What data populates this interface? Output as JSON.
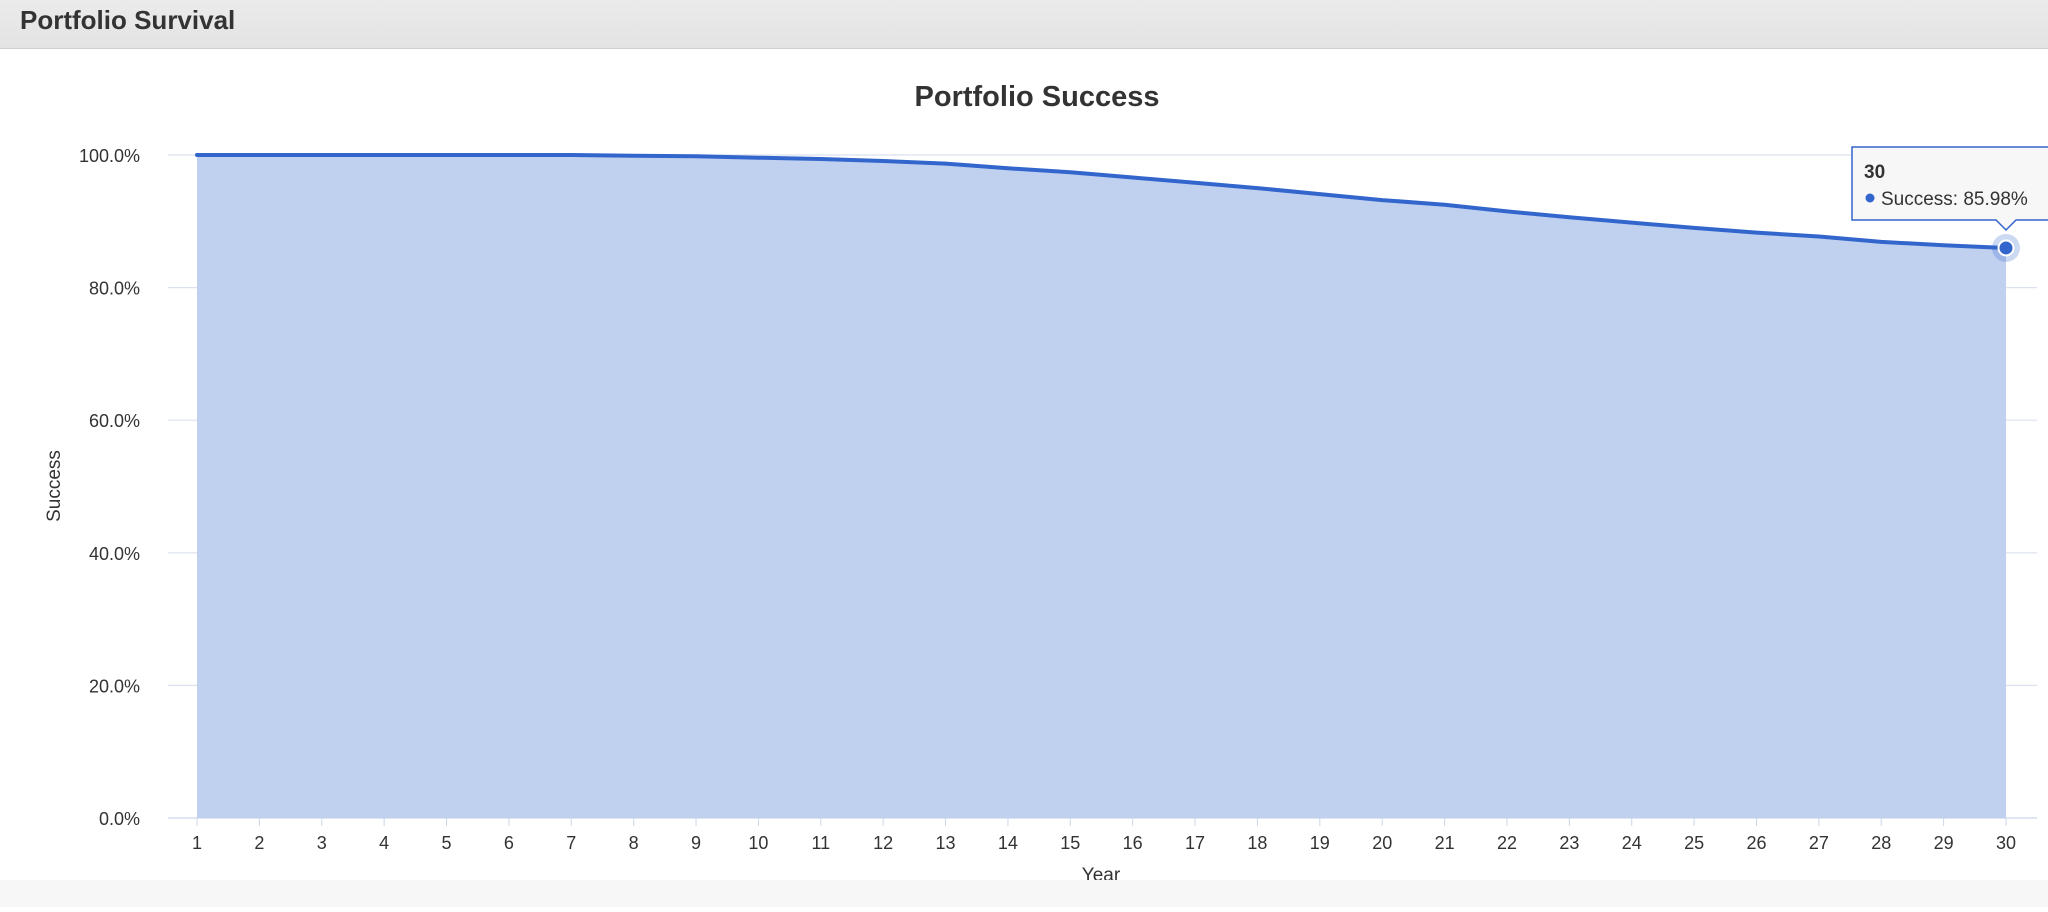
{
  "panel": {
    "title": "Portfolio Survival"
  },
  "tooltip": {
    "header": "30",
    "series_label": "Success",
    "value_text": "Success: 85.98%"
  },
  "colors": {
    "line": "#3366cc",
    "area": "#c0d1f0",
    "grid": "#dbe1ee",
    "axis_text": "#333333"
  },
  "chart_data": {
    "type": "area",
    "title": "Portfolio Success",
    "xlabel": "Year",
    "ylabel": "Success",
    "x": [
      1,
      2,
      3,
      4,
      5,
      6,
      7,
      8,
      9,
      10,
      11,
      12,
      13,
      14,
      15,
      16,
      17,
      18,
      19,
      20,
      21,
      22,
      23,
      24,
      25,
      26,
      27,
      28,
      29,
      30
    ],
    "series": [
      {
        "name": "Success",
        "values": [
          100.0,
          100.0,
          100.0,
          100.0,
          100.0,
          100.0,
          100.0,
          99.9,
          99.8,
          99.6,
          99.4,
          99.1,
          98.7,
          98.0,
          97.4,
          96.6,
          95.8,
          95.0,
          94.1,
          93.2,
          92.5,
          91.5,
          90.6,
          89.8,
          89.0,
          88.3,
          87.7,
          86.9,
          86.4,
          85.98
        ]
      }
    ],
    "yticks": [
      "0.0%",
      "20.0%",
      "40.0%",
      "60.0%",
      "80.0%",
      "100.0%"
    ],
    "ylim": [
      0,
      100
    ],
    "grid": true,
    "legend": "none"
  }
}
